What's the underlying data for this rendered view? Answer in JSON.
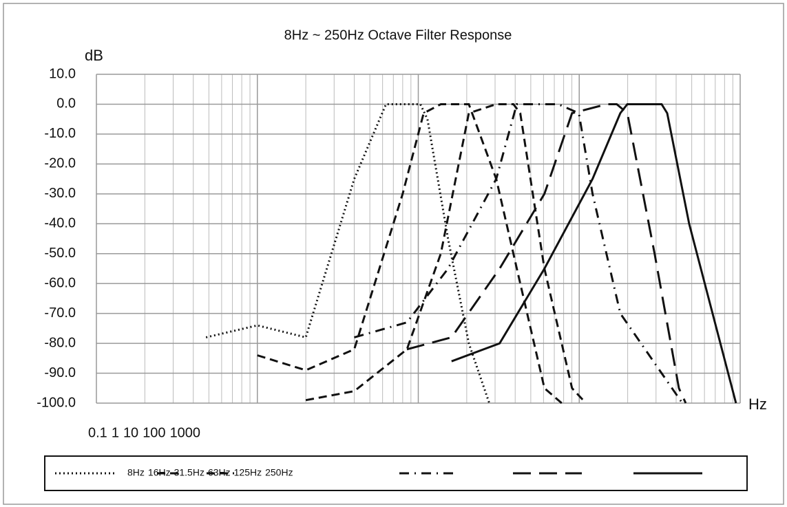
{
  "chart_data": {
    "type": "line",
    "title": "8Hz ~ 250Hz Octave Filter Response",
    "y_label": "dB",
    "x_label": "Hz",
    "xlim": [
      0.1,
      1000
    ],
    "x_log": true,
    "xticks": [
      0.1,
      1,
      10,
      100,
      1000
    ],
    "ylim": [
      -100,
      10
    ],
    "yticks": [
      {
        "value": -100,
        "label": "-100.0"
      },
      {
        "value": -90,
        "label": "-90.0"
      },
      {
        "value": -80,
        "label": "-80.0"
      },
      {
        "value": -70,
        "label": "-70.0"
      },
      {
        "value": -60,
        "label": "-60.0"
      },
      {
        "value": -50,
        "label": "-50.0"
      },
      {
        "value": -40,
        "label": "-40.0"
      },
      {
        "value": -30,
        "label": "-30.0"
      },
      {
        "value": -20,
        "label": "-20.0"
      },
      {
        "value": -10,
        "label": "-10.0"
      },
      {
        "value": 0,
        "label": "0.0"
      },
      {
        "value": 10,
        "label": "10.0"
      }
    ],
    "grid": true,
    "legend": "bottom",
    "series": [
      {
        "name": "8Hz",
        "color": "#111111",
        "line_style": "dotted",
        "x": [
          0.48,
          1.0,
          2.0,
          4.0,
          6.3,
          10.3,
          11.4,
          15.3,
          20.6,
          27.6
        ],
        "values": [
          -78,
          -74,
          -78,
          -25,
          0,
          0,
          -5,
          -45,
          -80,
          -100
        ]
      },
      {
        "name": "16Hz",
        "color": "#111111",
        "line_style": "dashed",
        "x": [
          1.0,
          2.0,
          4.0,
          8.0,
          10.8,
          13.8,
          20.6,
          30.5,
          43,
          60.8,
          77.8
        ],
        "values": [
          -84,
          -89,
          -82,
          -30,
          -3,
          0,
          0,
          -25,
          -60,
          -95,
          -100
        ]
      },
      {
        "name": "31.5Hz",
        "color": "#111111",
        "line_style": "dashed",
        "x": [
          2.0,
          4.0,
          8.5,
          13.8,
          20.6,
          30.5,
          39,
          43,
          60.8,
          90.2,
          110
        ],
        "values": [
          -99,
          -96,
          -82,
          -50,
          -3,
          0,
          0,
          -3,
          -55,
          -95,
          -100
        ]
      },
      {
        "name": "63Hz",
        "color": "#111111",
        "line_style": "dashdot",
        "x": [
          4.0,
          8.5,
          15.3,
          30.5,
          40.9,
          74,
          99.5,
          121,
          180,
          325,
          437
        ],
        "values": [
          -78,
          -73,
          -55,
          -25,
          0,
          0,
          -3,
          -30,
          -70,
          -90,
          -100
        ]
      },
      {
        "name": "125Hz",
        "color": "#111111",
        "line_style": "longdash",
        "x": [
          8.5,
          16.1,
          32,
          60.8,
          90.2,
          148,
          171,
          199,
          294,
          416,
          459
        ],
        "values": [
          -82,
          -78,
          -55,
          -30,
          -3,
          0,
          0,
          -3,
          -50,
          -95,
          -100
        ]
      },
      {
        "name": "250Hz",
        "color": "#111111",
        "line_style": "solid",
        "x": [
          16.1,
          32,
          60.8,
          121,
          180,
          199,
          325,
          352,
          482,
          942
        ],
        "values": [
          -86,
          -80,
          -55,
          -25,
          -3,
          0,
          0,
          -3,
          -40,
          -100
        ]
      }
    ]
  }
}
